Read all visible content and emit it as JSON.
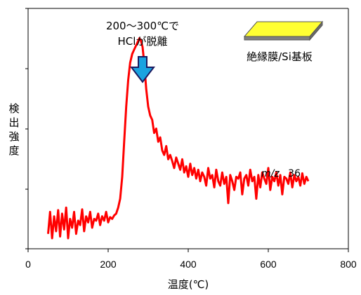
{
  "chart_data": {
    "type": "line",
    "title": "",
    "xlabel": "温度(℃)",
    "ylabel": "検出強度",
    "xlim": [
      0,
      800
    ],
    "x_ticks": [
      "0",
      "200",
      "400",
      "600",
      "800"
    ],
    "y_ticks_labeled": false,
    "grid": false,
    "series": [
      {
        "name": "m/z 36",
        "color": "#ff0000",
        "x": [
          50,
          55,
          60,
          65,
          70,
          75,
          80,
          85,
          90,
          95,
          100,
          105,
          110,
          115,
          120,
          125,
          130,
          135,
          140,
          145,
          150,
          155,
          160,
          165,
          170,
          175,
          180,
          185,
          190,
          195,
          200,
          205,
          210,
          215,
          220,
          225,
          230,
          235,
          240,
          245,
          250,
          255,
          260,
          265,
          270,
          275,
          278,
          282,
          286,
          290,
          295,
          300,
          305,
          310,
          315,
          320,
          325,
          330,
          335,
          340,
          345,
          350,
          355,
          360,
          365,
          370,
          375,
          380,
          385,
          390,
          395,
          400,
          405,
          410,
          415,
          420,
          425,
          430,
          435,
          440,
          445,
          450,
          455,
          460,
          465,
          470,
          475,
          480,
          485,
          490,
          495,
          500,
          505,
          510,
          515,
          520,
          525,
          530,
          535,
          540,
          545,
          550,
          555,
          560,
          565,
          570,
          575,
          580,
          585,
          590,
          595,
          600,
          605,
          610,
          615,
          620,
          625,
          630,
          635,
          640,
          645,
          650,
          655,
          660,
          665,
          670,
          675,
          680,
          685,
          690,
          695,
          700
        ],
        "y": [
          5,
          30,
          0,
          25,
          8,
          32,
          2,
          28,
          10,
          35,
          0,
          22,
          12,
          30,
          5,
          20,
          15,
          33,
          8,
          25,
          18,
          30,
          12,
          22,
          20,
          28,
          15,
          25,
          20,
          30,
          18,
          24,
          22,
          26,
          28,
          35,
          45,
          70,
          110,
          150,
          180,
          200,
          210,
          215,
          220,
          225,
          228,
          225,
          218,
          200,
          170,
          150,
          140,
          135,
          120,
          125,
          110,
          115,
          100,
          95,
          105,
          90,
          95,
          88,
          80,
          92,
          85,
          78,
          90,
          75,
          82,
          70,
          85,
          72,
          80,
          68,
          78,
          65,
          75,
          70,
          60,
          80,
          68,
          72,
          58,
          78,
          65,
          60,
          75,
          62,
          70,
          40,
          72,
          65,
          55,
          70,
          68,
          75,
          50,
          68,
          72,
          60,
          78,
          65,
          70,
          45,
          72,
          58,
          75,
          68,
          62,
          80,
          55,
          70,
          65,
          75,
          60,
          72,
          50,
          70,
          68,
          62,
          75,
          58,
          72,
          65,
          70,
          60,
          74,
          62,
          70,
          65
        ]
      }
    ],
    "annotations": {
      "peak_text_line1": "200～300℃で",
      "peak_text_line2": "HClが脱離",
      "sample_label": "絶縁膜/Si基板",
      "mz_italic": "m/z",
      "mz_value": "36"
    },
    "colors": {
      "line": "#ff0000",
      "arrow": "#1aa3e0",
      "substrate_top": "#ffff33",
      "substrate_side": "#808080"
    }
  }
}
